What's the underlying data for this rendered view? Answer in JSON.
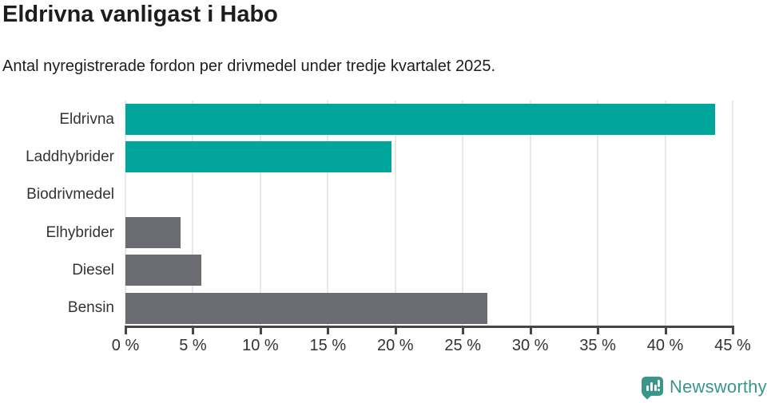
{
  "header": {
    "title": "Eldrivna vanligast i Habo",
    "subtitle": "Antal nyregistrerade fordon per drivmedel under tredje kvartalet 2025."
  },
  "chart_data": {
    "type": "bar",
    "orientation": "horizontal",
    "title": "Eldrivna vanligast i Habo",
    "subtitle": "Antal nyregistrerade fordon per drivmedel under tredje kvartalet 2025.",
    "categories": [
      "Eldrivna",
      "Laddhybrider",
      "Biodrivmedel",
      "Elhybrider",
      "Diesel",
      "Bensin"
    ],
    "values": [
      43.7,
      19.7,
      0,
      4.1,
      5.6,
      26.8
    ],
    "unit": "%",
    "bar_colors": [
      "#00a59b",
      "#00a59b",
      "#6b6b72",
      "#6b6b72",
      "#6b6b72",
      "#6b6b72"
    ],
    "xlim": [
      0,
      45
    ],
    "x_tick_values": [
      0,
      5,
      10,
      15,
      20,
      25,
      30,
      35,
      40,
      45
    ],
    "x_tick_labels": [
      "0 %",
      "5 %",
      "10 %",
      "15 %",
      "20 %",
      "25 %",
      "30 %",
      "35 %",
      "40 %",
      "45 %"
    ],
    "grid": true,
    "legend": false
  },
  "footer": {
    "brand": "Newsworthy",
    "logo_icon": "speech-bubble-bar-chart-icon"
  },
  "colors": {
    "accent_teal": "#00a59b",
    "bar_gray": "#6b6b72",
    "brand_teal": "#3a968b",
    "grid_line": "#e8e8e8",
    "axis_line": "#45454a",
    "title_text": "#1d1d1d",
    "tick_text": "#333333"
  }
}
